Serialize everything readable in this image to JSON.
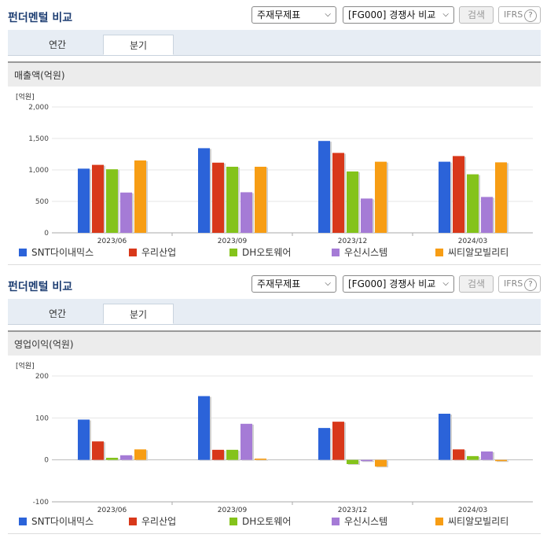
{
  "panels": [
    {
      "title": "펀더멘털 비교",
      "select1": "주재무제표",
      "select2": "[FG000] 경쟁사 비교",
      "search_label": "검색",
      "ifrs_label": "IFRS",
      "help_glyph": "?",
      "tabs": [
        "연간",
        "분기"
      ],
      "active_tab": 1,
      "metric_label": "매출액(억원)",
      "unit_label": "[억원]",
      "legend": [
        "SNT다이내믹스",
        "우리산업",
        "DH오토웨어",
        "우신시스템",
        "씨티알모빌리티"
      ]
    },
    {
      "title": "펀더멘털 비교",
      "select1": "주재무제표",
      "select2": "[FG000] 경쟁사 비교",
      "search_label": "검색",
      "ifrs_label": "IFRS",
      "help_glyph": "?",
      "tabs": [
        "연간",
        "분기"
      ],
      "active_tab": 1,
      "metric_label": "영업이익(억원)",
      "unit_label": "[억원]",
      "legend": [
        "SNT다이내믹스",
        "우리산업",
        "DH오토웨어",
        "우신시스템",
        "씨티알모빌리티"
      ]
    }
  ],
  "colors": [
    "#2b63d9",
    "#d8381a",
    "#84c31b",
    "#a57bd6",
    "#f79d14"
  ],
  "chart_data": [
    {
      "type": "bar",
      "title": "매출액(억원)",
      "ylabel": "[억원]",
      "categories": [
        "2023/06",
        "2023/09",
        "2023/12",
        "2024/03"
      ],
      "ylim": [
        0,
        2000
      ],
      "yticks": [
        0,
        500,
        1000,
        1500,
        2000
      ],
      "ytick_labels": [
        "0",
        "500",
        "1,000",
        "1,500",
        "2,000"
      ],
      "series": [
        {
          "name": "SNT다이내믹스",
          "values": [
            1020,
            1345,
            1460,
            1130
          ]
        },
        {
          "name": "우리산업",
          "values": [
            1080,
            1115,
            1270,
            1220
          ]
        },
        {
          "name": "DH오토웨어",
          "values": [
            1010,
            1050,
            975,
            930
          ]
        },
        {
          "name": "우신시스템",
          "values": [
            640,
            645,
            545,
            570
          ]
        },
        {
          "name": "씨티알모빌리티",
          "values": [
            1150,
            1050,
            1130,
            1120
          ]
        }
      ],
      "grid": true,
      "legend_position": "bottom"
    },
    {
      "type": "bar",
      "title": "영업이익(억원)",
      "ylabel": "[억원]",
      "categories": [
        "2023/06",
        "2023/09",
        "2023/12",
        "2024/03"
      ],
      "ylim": [
        -100,
        200
      ],
      "yticks": [
        -100,
        0,
        100,
        200
      ],
      "ytick_labels": [
        "-100",
        "0",
        "100",
        "200"
      ],
      "series": [
        {
          "name": "SNT다이내믹스",
          "values": [
            96,
            152,
            76,
            110
          ]
        },
        {
          "name": "우리산업",
          "values": [
            44,
            24,
            91,
            25
          ]
        },
        {
          "name": "DH오토웨어",
          "values": [
            5,
            24,
            -10,
            9
          ]
        },
        {
          "name": "우신시스템",
          "values": [
            11,
            86,
            -3,
            20
          ]
        },
        {
          "name": "씨티알모빌리티",
          "values": [
            25,
            3,
            -16,
            -3
          ]
        }
      ],
      "grid": true,
      "legend_position": "bottom"
    }
  ]
}
